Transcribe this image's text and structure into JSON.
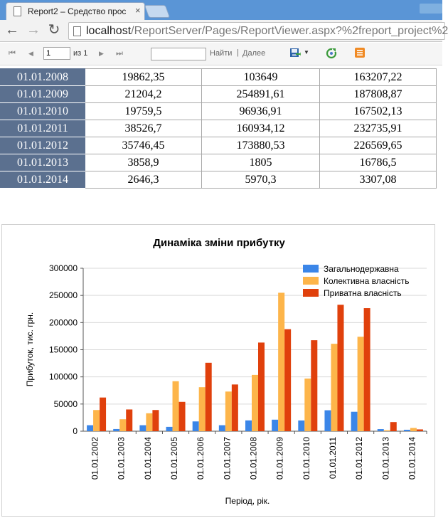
{
  "browser": {
    "tab_title": "Report2 – Средство прос",
    "tab_close": "×",
    "back": "←",
    "forward": "→",
    "reload": "↻",
    "url_host": "localhost",
    "url_path": "/ReportServer/Pages/ReportViewer.aspx?%2freport_project%2"
  },
  "viewer_toolbar": {
    "first_page": "⏮",
    "prev_page": "◀",
    "page_value": "1",
    "page_of": "из 1",
    "next_page": "▶",
    "last_page": "⏭",
    "find_label": "Найти",
    "find_separator": "|",
    "next_label": "Далее",
    "export_caret": "▼"
  },
  "table": {
    "rows": [
      {
        "date": "01.01.2008",
        "v1": "19862,35",
        "v2": "103649",
        "v3": "163207,22"
      },
      {
        "date": "01.01.2009",
        "v1": "21204,2",
        "v2": "254891,61",
        "v3": "187808,87"
      },
      {
        "date": "01.01.2010",
        "v1": "19759,5",
        "v2": "96936,91",
        "v3": "167502,13"
      },
      {
        "date": "01.01.2011",
        "v1": "38526,7",
        "v2": "160934,12",
        "v3": "232735,91"
      },
      {
        "date": "01.01.2012",
        "v1": "35746,45",
        "v2": "173880,53",
        "v3": "226569,65"
      },
      {
        "date": "01.01.2013",
        "v1": "3858,9",
        "v2": "1805",
        "v3": "16786,5"
      },
      {
        "date": "01.01.2014",
        "v1": "2646,3",
        "v2": "5970,3",
        "v3": "3307,08"
      }
    ]
  },
  "chart_data": {
    "type": "bar",
    "title": "Динаміка зміни прибутку",
    "xlabel": "Період, рік.",
    "ylabel": "Прибуток, тис. грн.",
    "ylim": [
      0,
      300000
    ],
    "yticks": [
      "0",
      "50000",
      "100000",
      "150000",
      "200000",
      "250000",
      "300000"
    ],
    "grid": true,
    "legend_position": "top-right",
    "categories": [
      "01.01.2002",
      "01.01.2003",
      "01.01.2004",
      "01.01.2005",
      "01.01.2006",
      "01.01.2007",
      "01.01.2008",
      "01.01.2009",
      "01.01.2010",
      "01.01.2011",
      "01.01.2012",
      "01.01.2013",
      "01.01.2014"
    ],
    "series": [
      {
        "name": "Загальнодержавна",
        "color": "#3b86e8",
        "values": [
          11000,
          4000,
          11000,
          8000,
          18000,
          11000,
          19862.35,
          21204.2,
          19759.5,
          38526.7,
          35746.45,
          3858.9,
          2646.3
        ]
      },
      {
        "name": "Колективна власність",
        "color": "#fdb54a",
        "values": [
          39000,
          22000,
          33000,
          92000,
          81000,
          73000,
          103649,
          254891.61,
          96936.91,
          160934.12,
          173880.53,
          1805,
          5970.3
        ]
      },
      {
        "name": "Приватна власність",
        "color": "#e0400c",
        "values": [
          62000,
          40000,
          39000,
          54000,
          126000,
          86000,
          163207.22,
          187808.87,
          167502.13,
          232735.91,
          226569.65,
          16786.5,
          3307.08
        ]
      }
    ]
  }
}
